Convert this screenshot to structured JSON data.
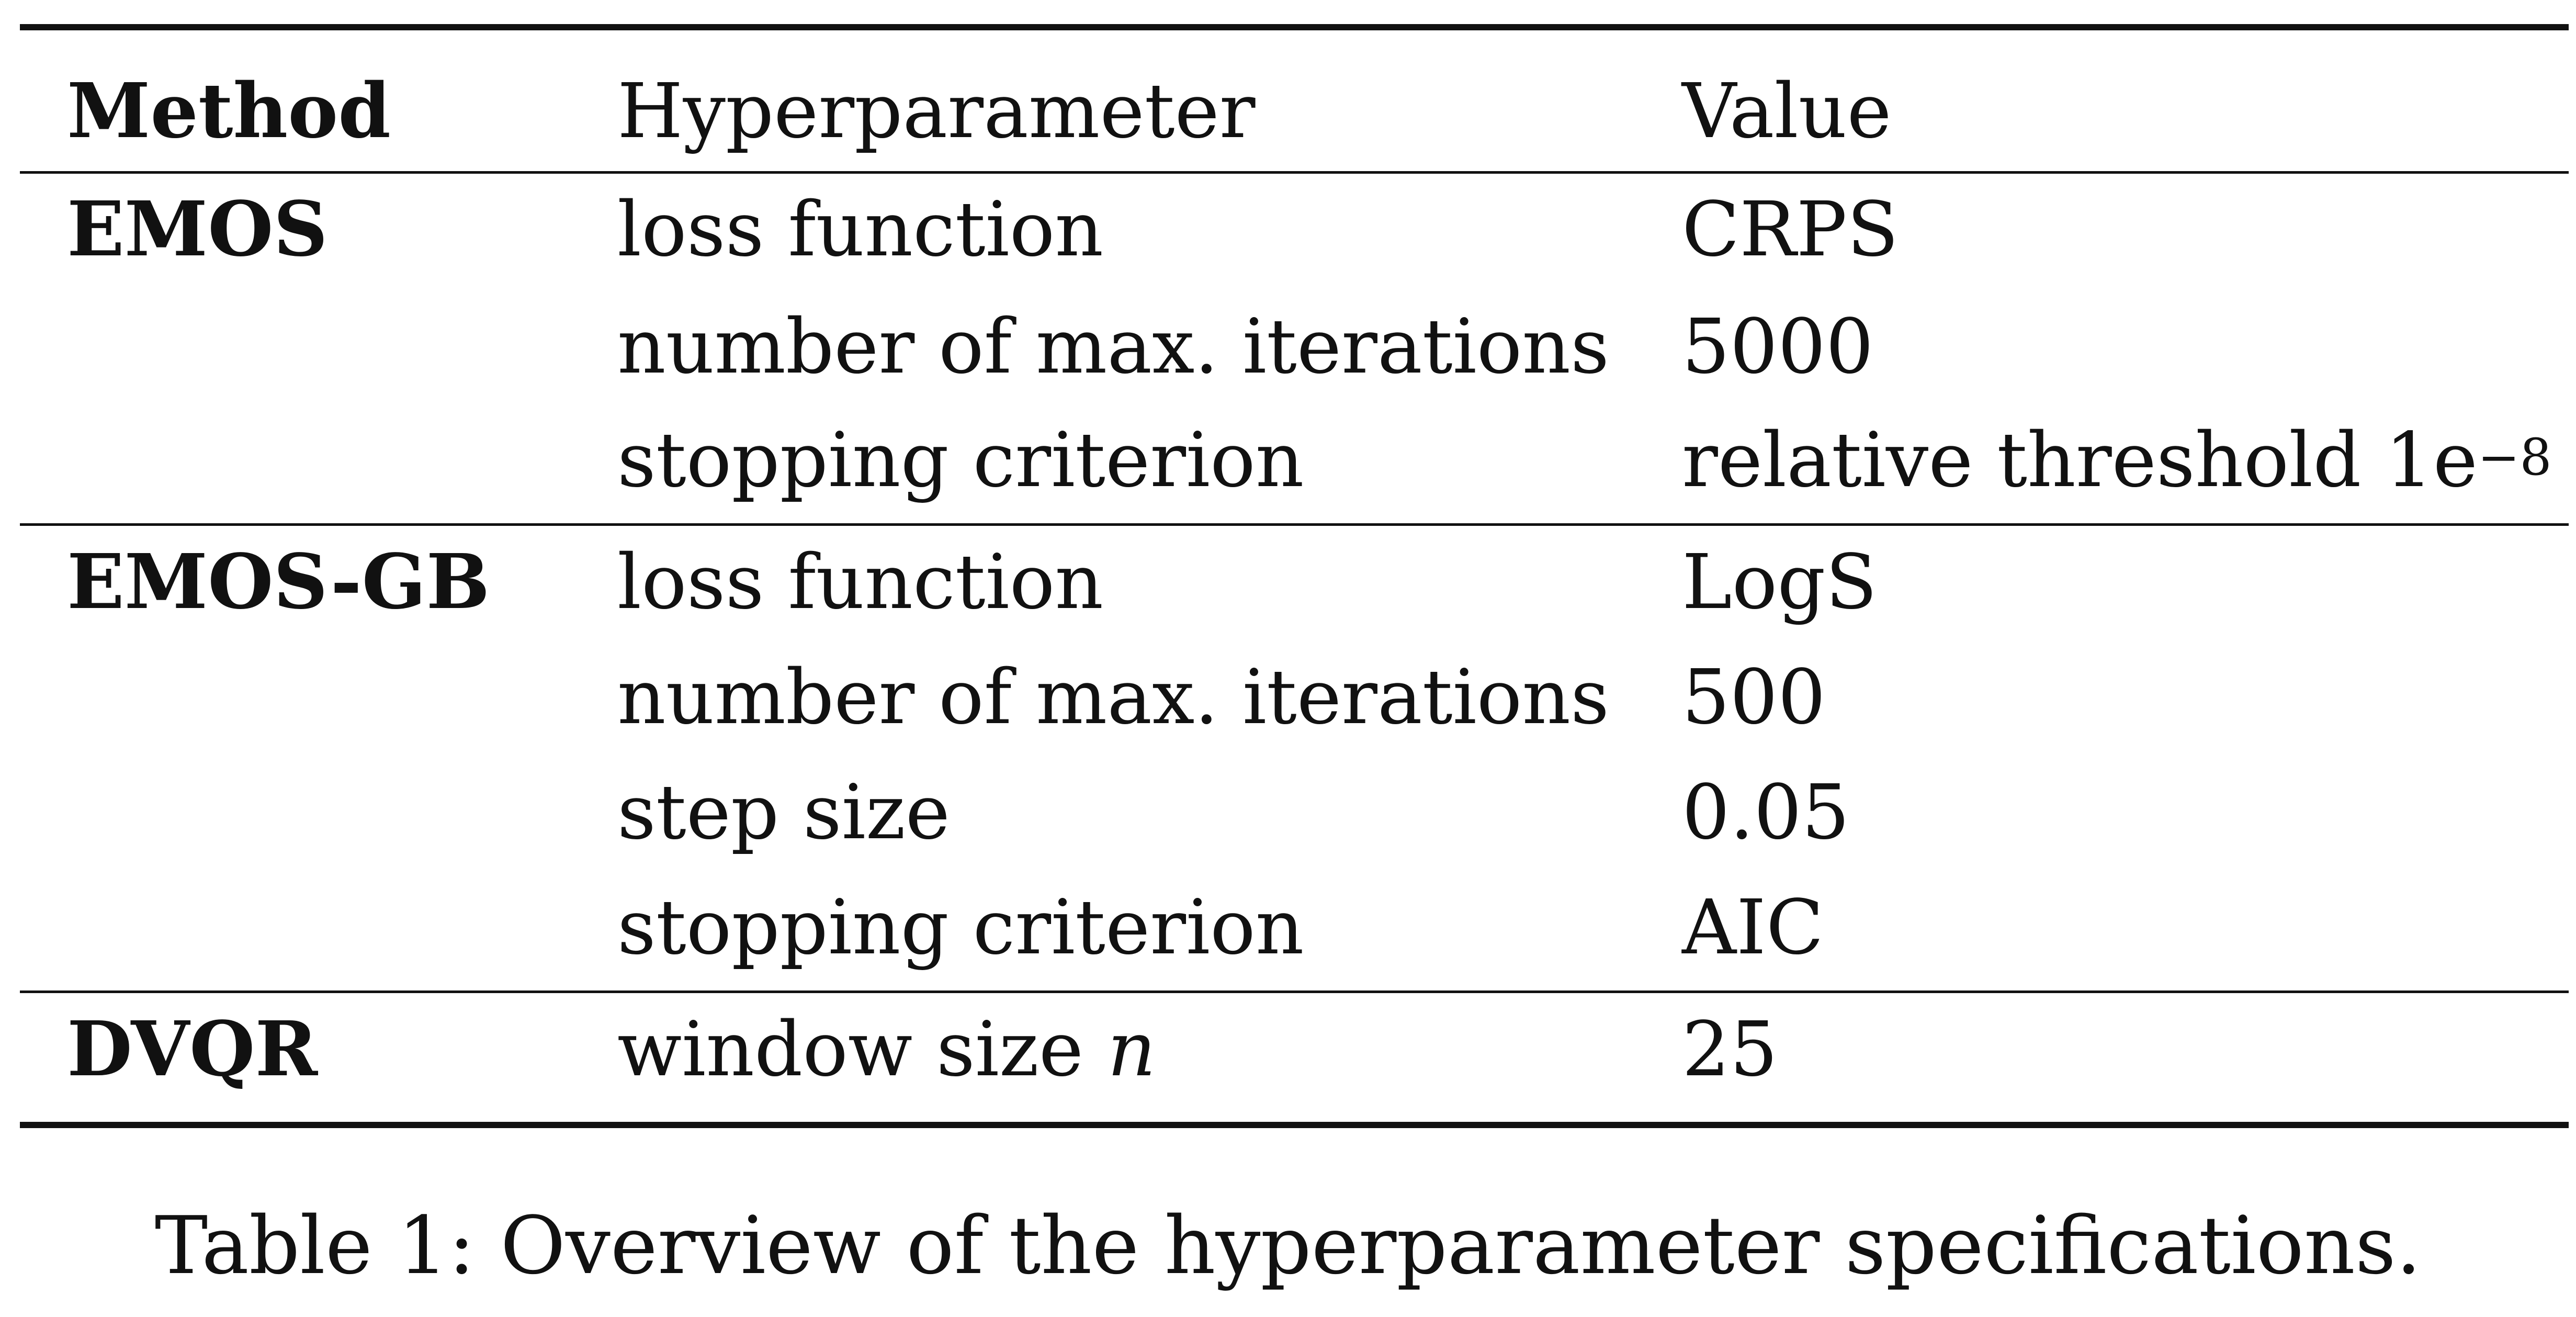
{
  "table": {
    "header": {
      "method": "Method",
      "hyperparameter": "Hyperparameter",
      "value": "Value"
    },
    "groups": [
      {
        "method": "EMOS",
        "rows": [
          {
            "hyperparameter": "loss function",
            "value": "CRPS"
          },
          {
            "hyperparameter": "number of max. iterations",
            "value": "5000"
          },
          {
            "hyperparameter": "stopping criterion",
            "value": "relative threshold 1e",
            "value_exponent": "−8"
          }
        ]
      },
      {
        "method": "EMOS-GB",
        "rows": [
          {
            "hyperparameter": "loss function",
            "value": "LogS"
          },
          {
            "hyperparameter": "number of max. iterations",
            "value": "500"
          },
          {
            "hyperparameter": "step size",
            "value": "0.05"
          },
          {
            "hyperparameter": "stopping criterion",
            "value": "AIC"
          }
        ]
      },
      {
        "method": "DVQR",
        "rows": [
          {
            "hyperparameter": "window size ",
            "hyperparameter_symbol": "n",
            "value": "25"
          }
        ]
      }
    ]
  },
  "caption": "Table 1: Overview of the hyperparameter specifications."
}
